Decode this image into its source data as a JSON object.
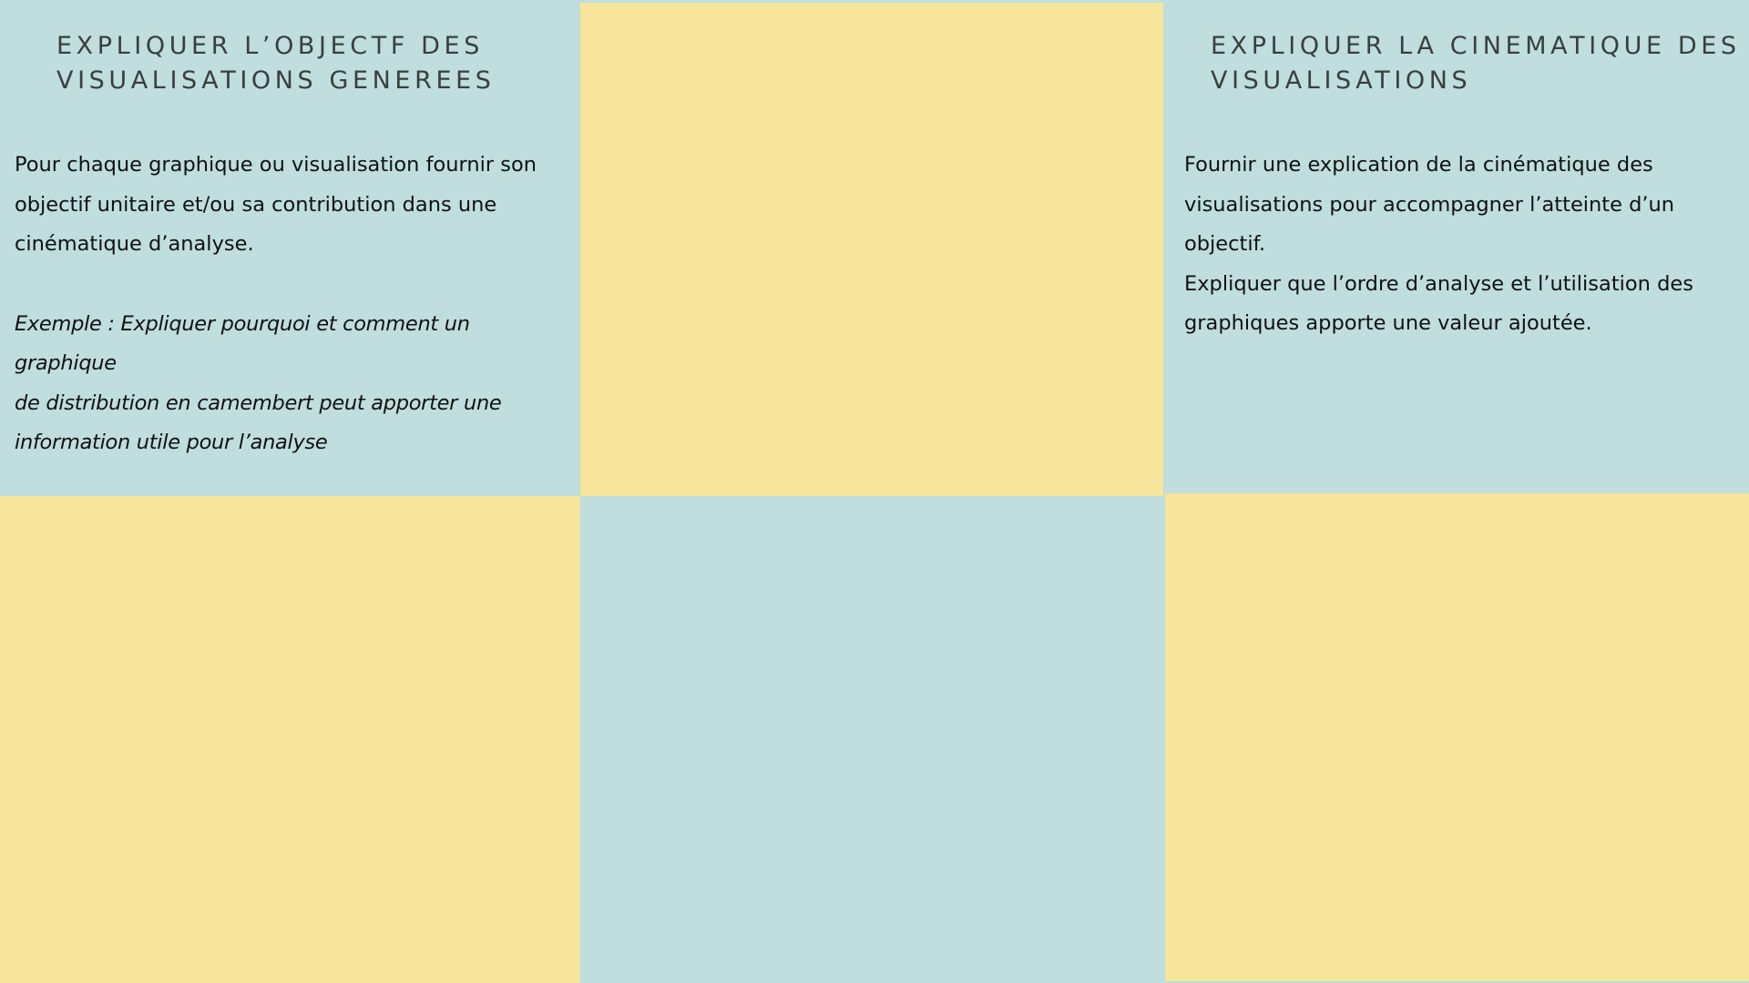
{
  "colors": {
    "teal": "#bfdedd",
    "yellow": "#f6e59b",
    "heading": "#3a3f3e",
    "text": "#111111"
  },
  "left": {
    "heading_line1": "EXPLIQUER L’OBJECTF DES",
    "heading_line2": "VISUALISATIONS GENEREES",
    "lines": [
      "Pour chaque graphique ou visualisation fournir son",
      "objectif unitaire et/ou sa contribution dans une",
      "cinématique d’analyse."
    ],
    "example_lines": [
      "Exemple : Expliquer pourquoi et comment un graphique",
      "de distribution en camembert peut apporter une",
      "information utile pour l’analyse"
    ]
  },
  "right": {
    "heading_line1": "EXPLIQUER LA CINEMATIQUE DES",
    "heading_line2": "VISUALISATIONS",
    "lines": [
      "Fournir une explication de la cinématique des",
      "visualisations pour accompagner l’atteinte d’un objectif.",
      "Expliquer que l’ordre d’analyse et l’utilisation des",
      "graphiques apporte une valeur ajoutée."
    ]
  }
}
